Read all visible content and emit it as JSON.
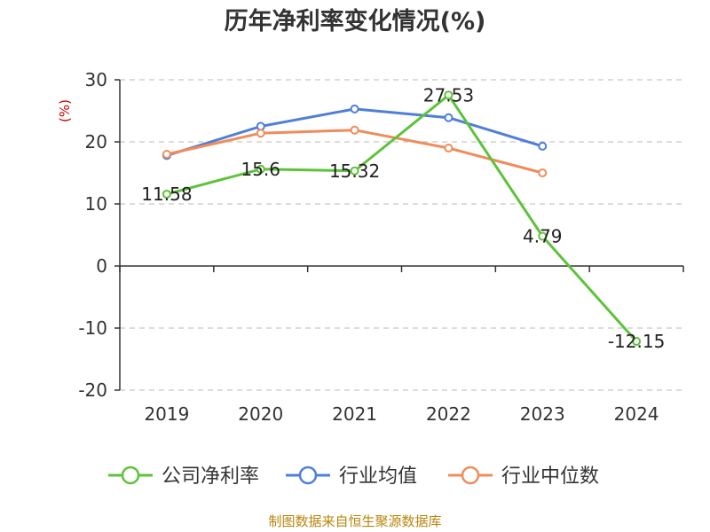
{
  "chart_data": {
    "type": "line",
    "title": "历年净利率变化情况(%)",
    "ylabel": "(%)",
    "categories": [
      "2019",
      "2020",
      "2021",
      "2022",
      "2023",
      "2024"
    ],
    "ylim": [
      -20,
      30
    ],
    "yticks": [
      30,
      20,
      10,
      0,
      -10,
      -20
    ],
    "grid": true,
    "legend_position": "bottom",
    "series": [
      {
        "name": "公司净利率",
        "color": "#5ec23a",
        "values": [
          11.58,
          15.6,
          15.32,
          27.53,
          4.79,
          -12.15
        ],
        "labels": [
          "11.58",
          "15.6",
          "15.32",
          "27.53",
          "4.79",
          "-12.15"
        ]
      },
      {
        "name": "行业均值",
        "color": "#4f7fd9",
        "values": [
          17.8,
          22.5,
          25.3,
          23.9,
          19.3,
          null
        ]
      },
      {
        "name": "行业中位数",
        "color": "#f08c5a",
        "values": [
          18.0,
          21.4,
          21.9,
          19.0,
          15.0,
          null
        ]
      }
    ]
  },
  "footer": {
    "source": "制图数据来自恒生聚源数据库"
  }
}
